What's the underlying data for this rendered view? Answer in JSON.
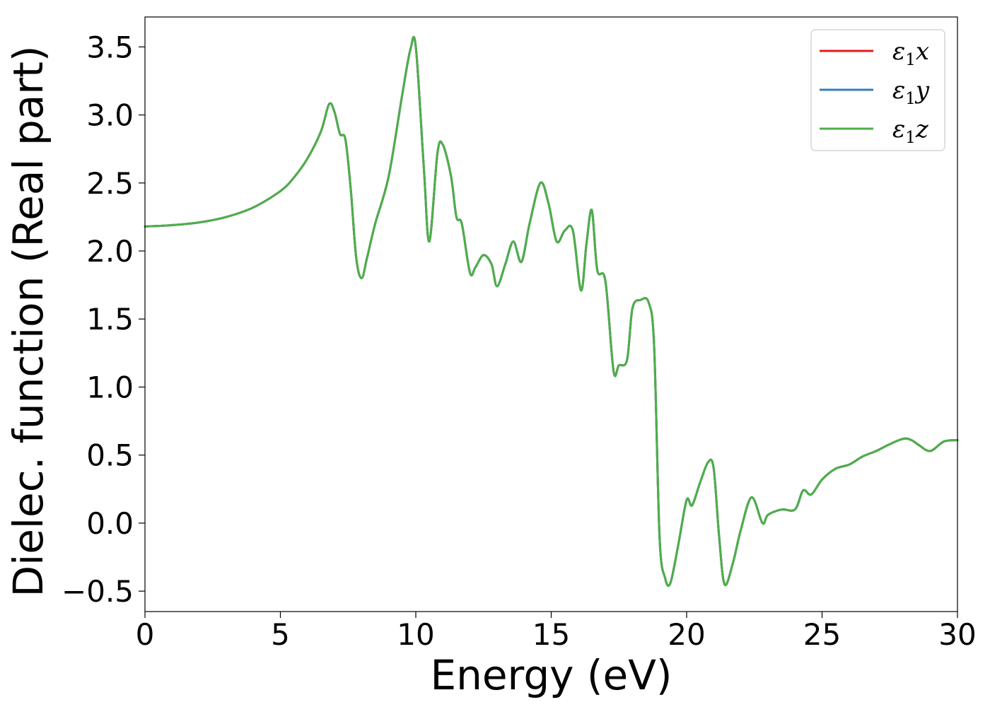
{
  "chart_data": {
    "type": "line",
    "title": "",
    "xlabel": "Energy (eV)",
    "ylabel": "Dielec. function (Real part)",
    "xlim": [
      0,
      30
    ],
    "ylim": [
      -0.65,
      3.72
    ],
    "xticks": [
      0,
      5,
      10,
      15,
      20,
      25,
      30
    ],
    "xtick_labels": [
      "0",
      "5",
      "10",
      "15",
      "20",
      "25",
      "30"
    ],
    "yticks": [
      -0.5,
      0.0,
      0.5,
      1.0,
      1.5,
      2.0,
      2.5,
      3.0,
      3.5
    ],
    "ytick_labels": [
      "−0.5",
      "0.0",
      "0.5",
      "1.0",
      "1.5",
      "2.0",
      "2.5",
      "3.0",
      "3.5"
    ],
    "grid": false,
    "legend": {
      "placement": "top-right",
      "entries": [
        {
          "base": "ε",
          "sub": "1",
          "suffix": "x",
          "color": "#e41a1c"
        },
        {
          "base": "ε",
          "sub": "1",
          "suffix": "y",
          "color": "#377eb8"
        },
        {
          "base": "ε",
          "sub": "1",
          "suffix": "z",
          "color": "#4daf4a"
        }
      ]
    },
    "series": [
      {
        "name": "ε1x",
        "color": "#e41a1c",
        "x": [
          0,
          1,
          2,
          3,
          4,
          5,
          5.5,
          6,
          6.5,
          6.8,
          7.0,
          7.2,
          7.4,
          7.6,
          7.8,
          8.0,
          8.2,
          8.5,
          9.0,
          9.5,
          9.8,
          10.0,
          10.3,
          10.5,
          10.8,
          11.0,
          11.3,
          11.5,
          11.7,
          12.0,
          12.2,
          12.5,
          12.8,
          13.0,
          13.3,
          13.6,
          13.9,
          14.2,
          14.6,
          14.9,
          15.2,
          15.5,
          15.8,
          16.1,
          16.3,
          16.5,
          16.7,
          17.0,
          17.3,
          17.5,
          17.8,
          18.0,
          18.3,
          18.6,
          18.8,
          19.0,
          19.2,
          19.4,
          19.7,
          20.0,
          20.2,
          20.5,
          20.8,
          21.0,
          21.2,
          21.4,
          21.7,
          22.0,
          22.4,
          22.8,
          23.0,
          23.5,
          24.0,
          24.3,
          24.6,
          25.0,
          25.5,
          26.0,
          26.5,
          27.0,
          27.5,
          28.0,
          28.3,
          28.6,
          29.0,
          29.5,
          30.0
        ],
        "y": [
          2.18,
          2.19,
          2.21,
          2.25,
          2.32,
          2.44,
          2.54,
          2.68,
          2.88,
          3.08,
          3.02,
          2.86,
          2.82,
          2.45,
          1.95,
          1.8,
          1.95,
          2.2,
          2.55,
          3.15,
          3.48,
          3.5,
          2.6,
          2.07,
          2.72,
          2.78,
          2.55,
          2.25,
          2.2,
          1.84,
          1.88,
          1.97,
          1.9,
          1.74,
          1.9,
          2.07,
          1.92,
          2.2,
          2.5,
          2.35,
          2.07,
          2.15,
          2.15,
          1.71,
          2.05,
          2.3,
          1.86,
          1.78,
          1.12,
          1.16,
          1.2,
          1.58,
          1.64,
          1.62,
          1.3,
          -0.1,
          -0.4,
          -0.44,
          -0.15,
          0.17,
          0.13,
          0.3,
          0.45,
          0.4,
          -0.1,
          -0.45,
          -0.3,
          -0.05,
          0.19,
          0.0,
          0.06,
          0.1,
          0.1,
          0.24,
          0.21,
          0.32,
          0.4,
          0.43,
          0.49,
          0.53,
          0.58,
          0.62,
          0.61,
          0.57,
          0.53,
          0.6,
          0.61
        ]
      },
      {
        "name": "ε1y",
        "color": "#377eb8",
        "x": [
          0,
          1,
          2,
          3,
          4,
          5,
          5.5,
          6,
          6.5,
          6.8,
          7.0,
          7.2,
          7.4,
          7.6,
          7.8,
          8.0,
          8.2,
          8.5,
          9.0,
          9.5,
          9.8,
          10.0,
          10.3,
          10.5,
          10.8,
          11.0,
          11.3,
          11.5,
          11.7,
          12.0,
          12.2,
          12.5,
          12.8,
          13.0,
          13.3,
          13.6,
          13.9,
          14.2,
          14.6,
          14.9,
          15.2,
          15.5,
          15.8,
          16.1,
          16.3,
          16.5,
          16.7,
          17.0,
          17.3,
          17.5,
          17.8,
          18.0,
          18.3,
          18.6,
          18.8,
          19.0,
          19.2,
          19.4,
          19.7,
          20.0,
          20.2,
          20.5,
          20.8,
          21.0,
          21.2,
          21.4,
          21.7,
          22.0,
          22.4,
          22.8,
          23.0,
          23.5,
          24.0,
          24.3,
          24.6,
          25.0,
          25.5,
          26.0,
          26.5,
          27.0,
          27.5,
          28.0,
          28.3,
          28.6,
          29.0,
          29.5,
          30.0
        ],
        "y": [
          2.18,
          2.19,
          2.21,
          2.25,
          2.32,
          2.44,
          2.54,
          2.68,
          2.88,
          3.08,
          3.02,
          2.86,
          2.82,
          2.45,
          1.95,
          1.8,
          1.95,
          2.2,
          2.55,
          3.15,
          3.48,
          3.5,
          2.6,
          2.07,
          2.72,
          2.78,
          2.55,
          2.25,
          2.2,
          1.84,
          1.88,
          1.97,
          1.9,
          1.74,
          1.9,
          2.07,
          1.92,
          2.2,
          2.5,
          2.35,
          2.07,
          2.15,
          2.15,
          1.71,
          2.05,
          2.3,
          1.86,
          1.78,
          1.12,
          1.16,
          1.2,
          1.58,
          1.64,
          1.62,
          1.3,
          -0.1,
          -0.4,
          -0.44,
          -0.15,
          0.17,
          0.13,
          0.3,
          0.45,
          0.4,
          -0.1,
          -0.45,
          -0.3,
          -0.05,
          0.19,
          0.0,
          0.06,
          0.1,
          0.1,
          0.24,
          0.21,
          0.32,
          0.4,
          0.43,
          0.49,
          0.53,
          0.58,
          0.62,
          0.61,
          0.57,
          0.53,
          0.6,
          0.61
        ]
      },
      {
        "name": "ε1z",
        "color": "#4daf4a",
        "x": [
          0,
          1,
          2,
          3,
          4,
          5,
          5.5,
          6,
          6.5,
          6.8,
          7.0,
          7.2,
          7.4,
          7.6,
          7.8,
          8.0,
          8.2,
          8.5,
          9.0,
          9.5,
          9.8,
          10.0,
          10.3,
          10.5,
          10.8,
          11.0,
          11.3,
          11.5,
          11.7,
          12.0,
          12.2,
          12.5,
          12.8,
          13.0,
          13.3,
          13.6,
          13.9,
          14.2,
          14.6,
          14.9,
          15.2,
          15.5,
          15.8,
          16.1,
          16.3,
          16.5,
          16.7,
          17.0,
          17.3,
          17.5,
          17.8,
          18.0,
          18.3,
          18.6,
          18.8,
          19.0,
          19.2,
          19.4,
          19.7,
          20.0,
          20.2,
          20.5,
          20.8,
          21.0,
          21.2,
          21.4,
          21.7,
          22.0,
          22.4,
          22.8,
          23.0,
          23.5,
          24.0,
          24.3,
          24.6,
          25.0,
          25.5,
          26.0,
          26.5,
          27.0,
          27.5,
          28.0,
          28.3,
          28.6,
          29.0,
          29.5,
          30.0
        ],
        "y": [
          2.18,
          2.19,
          2.21,
          2.25,
          2.32,
          2.44,
          2.54,
          2.68,
          2.88,
          3.08,
          3.02,
          2.86,
          2.82,
          2.45,
          1.95,
          1.8,
          1.95,
          2.2,
          2.55,
          3.15,
          3.48,
          3.5,
          2.6,
          2.07,
          2.72,
          2.78,
          2.55,
          2.25,
          2.2,
          1.84,
          1.88,
          1.97,
          1.9,
          1.74,
          1.9,
          2.07,
          1.92,
          2.2,
          2.5,
          2.35,
          2.07,
          2.15,
          2.15,
          1.71,
          2.05,
          2.3,
          1.86,
          1.78,
          1.12,
          1.16,
          1.2,
          1.58,
          1.64,
          1.62,
          1.3,
          -0.1,
          -0.4,
          -0.44,
          -0.15,
          0.17,
          0.13,
          0.3,
          0.45,
          0.4,
          -0.1,
          -0.45,
          -0.3,
          -0.05,
          0.19,
          0.0,
          0.06,
          0.1,
          0.1,
          0.24,
          0.21,
          0.32,
          0.4,
          0.43,
          0.49,
          0.53,
          0.58,
          0.62,
          0.61,
          0.57,
          0.53,
          0.6,
          0.61
        ]
      }
    ]
  }
}
